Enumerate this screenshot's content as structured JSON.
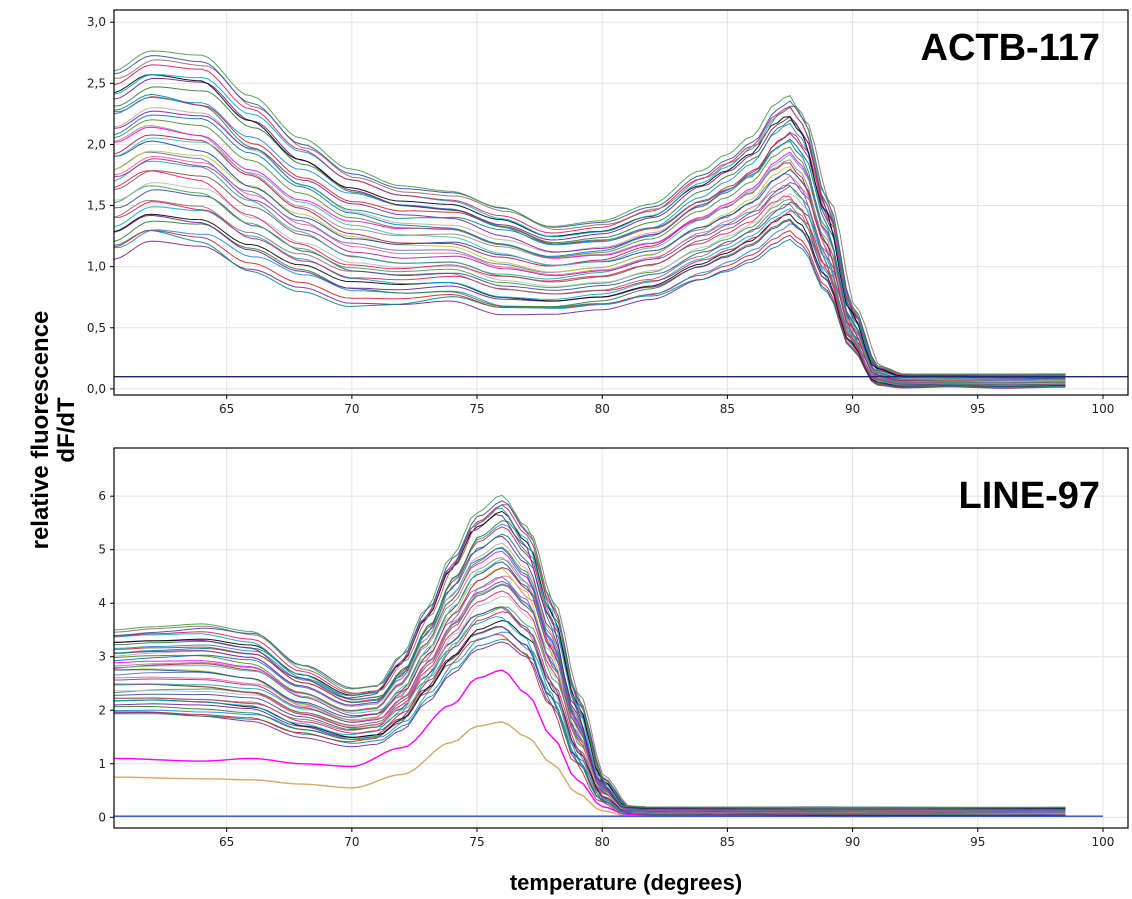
{
  "figure": {
    "ylabel_line1": "relative fluorescence",
    "ylabel_line2": "dF/dT",
    "xlabel": "temperature (degrees)"
  },
  "colors": [
    "#7b1fa2",
    "#00897b",
    "#c62828",
    "#1e88e5",
    "#2e7d32",
    "#6a1b9a",
    "#000000",
    "#00acc1",
    "#d81b60",
    "#8d6e63",
    "#3949ab",
    "#43a047",
    "#b0bec5",
    "#e91e63",
    "#795548",
    "#26a69a",
    "#9c27b0",
    "#f06292",
    "#5c6bc0",
    "#c0ca33",
    "#0d47a1",
    "#ad1457",
    "#4db6ac",
    "#a1887f",
    "#ff00ff",
    "#558b2f",
    "#0277bd",
    "#bcaaa4"
  ],
  "chart_data": [
    {
      "type": "line",
      "title": "ACTB-117",
      "xlim": [
        60.5,
        101
      ],
      "ylim": [
        -0.05,
        3.1
      ],
      "xticks": [
        65,
        70,
        75,
        80,
        85,
        90,
        95,
        100
      ],
      "yticks": [
        0.0,
        0.5,
        1.0,
        1.5,
        2.0,
        2.5,
        3.0
      ],
      "ytick_labels": [
        "0,0",
        "0,5",
        "1,0",
        "1,5",
        "2,0",
        "2,5",
        "3,0"
      ],
      "threshold": 0.1,
      "series_count": 40,
      "x": [
        60.5,
        62,
        64,
        66,
        68,
        70,
        72,
        74,
        76,
        78,
        80,
        82,
        84,
        85,
        86,
        87,
        87.5,
        88,
        89,
        90,
        91,
        92,
        94,
        96,
        98.5
      ],
      "envelope_low": [
        1.0,
        1.15,
        1.1,
        0.9,
        0.75,
        0.62,
        0.62,
        0.66,
        0.56,
        0.58,
        0.62,
        0.7,
        0.85,
        0.92,
        1.0,
        1.12,
        1.18,
        1.1,
        0.75,
        0.3,
        0.02,
        0.0,
        0.01,
        0.0,
        0.01
      ],
      "envelope_high": [
        2.7,
        2.85,
        2.8,
        2.45,
        2.1,
        1.85,
        1.72,
        1.68,
        1.55,
        1.38,
        1.42,
        1.55,
        1.82,
        1.95,
        2.1,
        2.38,
        2.45,
        2.3,
        1.6,
        0.7,
        0.2,
        0.13,
        0.13,
        0.13,
        0.13
      ]
    },
    {
      "type": "line",
      "title": "LINE-97",
      "xlim": [
        60.5,
        101
      ],
      "ylim": [
        -0.2,
        6.9
      ],
      "xticks": [
        65,
        70,
        75,
        80,
        85,
        90,
        95,
        100
      ],
      "yticks": [
        0,
        1,
        2,
        3,
        4,
        5,
        6
      ],
      "ytick_labels": [
        "0",
        "1",
        "2",
        "3",
        "4",
        "5",
        "6"
      ],
      "series_count": 40,
      "x": [
        60.5,
        62,
        64,
        66,
        68,
        70,
        71,
        72,
        73,
        74,
        75,
        76,
        77,
        78,
        79,
        80,
        81,
        82,
        85,
        90,
        95,
        98.5
      ],
      "envelope_low": [
        1.8,
        1.8,
        1.75,
        1.7,
        1.45,
        1.3,
        1.35,
        1.6,
        2.1,
        2.6,
        3.0,
        3.1,
        2.8,
        1.9,
        0.9,
        0.25,
        0.05,
        0.03,
        0.02,
        0.01,
        0.01,
        0.01
      ],
      "envelope_high": [
        3.6,
        3.65,
        3.7,
        3.55,
        2.9,
        2.45,
        2.5,
        3.1,
        4.0,
        5.0,
        5.85,
        6.2,
        5.6,
        4.2,
        2.4,
        0.8,
        0.22,
        0.2,
        0.2,
        0.2,
        0.2,
        0.2
      ],
      "outliers": [
        {
          "color": "#ff00ff",
          "x": [
            60.5,
            64,
            66,
            68,
            70,
            72,
            74,
            75,
            76,
            77,
            78,
            79,
            80,
            81,
            82,
            90,
            98.5
          ],
          "y": [
            1.1,
            1.05,
            1.1,
            1.0,
            0.95,
            1.3,
            2.1,
            2.6,
            2.75,
            2.3,
            1.5,
            0.7,
            0.2,
            0.05,
            0.03,
            0.02,
            0.02
          ]
        },
        {
          "color": "#d4a96a",
          "x": [
            60.5,
            64,
            66,
            68,
            70,
            72,
            74,
            75,
            76,
            77,
            78,
            79,
            80,
            81,
            82,
            90,
            98.5
          ],
          "y": [
            0.75,
            0.72,
            0.7,
            0.62,
            0.55,
            0.8,
            1.4,
            1.7,
            1.78,
            1.5,
            1.0,
            0.45,
            0.12,
            0.03,
            0.02,
            0.02,
            0.02
          ]
        },
        {
          "color": "#1e4fc8",
          "x": [
            60.5,
            70,
            80,
            90,
            100
          ],
          "y": [
            0.02,
            0.02,
            0.02,
            0.02,
            0.02
          ]
        }
      ]
    }
  ]
}
